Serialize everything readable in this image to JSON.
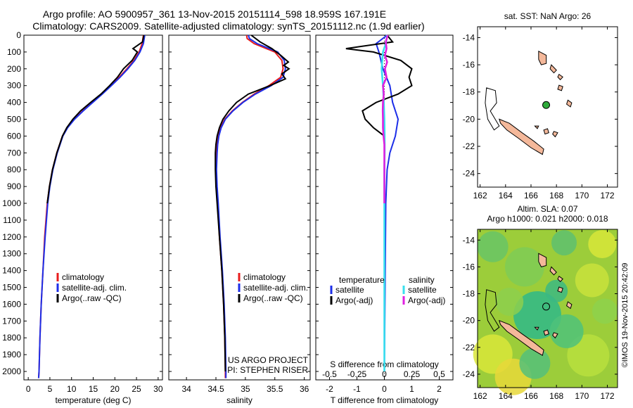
{
  "header": {
    "line1": "Argo profile: AO 5900957_361 13-Nov-2015 20151114_598 18.959S 167.191E",
    "line2": "Climatology: CARS2009. Satellite-adjusted climatology: synTS_20151112.nc (1.9d earlier)"
  },
  "colors": {
    "climatology": "#e81c1c",
    "satellite": "#1c2ee8",
    "argo": "#000000",
    "sal_satellite": "#38e0ee",
    "sal_argo": "#e020e0",
    "land": "#f4b89a"
  },
  "chart_data": [
    {
      "type": "line",
      "panel": "temperature",
      "xlabel": "temperature (deg C)",
      "ylabel": "",
      "xlim": [
        -1,
        31
      ],
      "ylim": [
        2050,
        0
      ],
      "x_ticks": [
        "0",
        "5",
        "10",
        "15",
        "20",
        "25",
        "30"
      ],
      "y_ticks": [
        "0",
        "100",
        "200",
        "300",
        "400",
        "500",
        "600",
        "700",
        "800",
        "900",
        "1000",
        "1100",
        "1200",
        "1300",
        "1400",
        "1500",
        "1600",
        "1700",
        "1800",
        "1900",
        "2000"
      ],
      "series": [
        {
          "name": "climatology",
          "depth": [
            0,
            50,
            100,
            150,
            200,
            250,
            300,
            350,
            400,
            450,
            500,
            550,
            600,
            700,
            800,
            900,
            1000,
            1200,
            1400,
            1600,
            1800,
            2000,
            2040
          ],
          "values": [
            26.6,
            26.3,
            25.6,
            24.4,
            22.8,
            21.0,
            19.0,
            17.0,
            14.8,
            12.6,
            10.6,
            9.0,
            7.9,
            6.6,
            5.6,
            4.9,
            4.4,
            3.8,
            3.4,
            3.0,
            2.7,
            2.5,
            2.4
          ]
        },
        {
          "name": "satellite-adj. clim.",
          "depth": [
            0,
            50,
            100,
            150,
            200,
            250,
            300,
            350,
            400,
            450,
            500,
            550,
            600,
            700,
            800,
            900,
            1000,
            1200,
            1400,
            1600,
            1800,
            2000,
            2040
          ],
          "values": [
            26.9,
            26.6,
            25.8,
            24.6,
            23.0,
            21.2,
            19.2,
            17.1,
            14.9,
            12.7,
            10.7,
            9.1,
            8.0,
            6.7,
            5.7,
            5.0,
            4.5,
            3.9,
            3.4,
            3.0,
            2.7,
            2.5,
            2.4
          ]
        },
        {
          "name": "Argo(..raw -QC)",
          "depth": [
            0,
            40,
            80,
            100,
            150,
            200,
            250,
            300,
            350,
            400,
            450,
            500,
            550,
            600,
            700,
            800,
            900,
            1000
          ],
          "values": [
            26.7,
            26.4,
            24.2,
            25.2,
            24.0,
            22.0,
            20.6,
            18.8,
            16.8,
            14.4,
            12.1,
            10.3,
            8.9,
            7.9,
            6.6,
            5.6,
            4.9,
            4.4
          ]
        }
      ],
      "legend": [
        "climatology",
        "satellite-adj. clim.",
        "Argo(..raw -QC)"
      ]
    },
    {
      "type": "line",
      "panel": "salinity",
      "xlabel": "salinity",
      "xlim": [
        33.7,
        36.1
      ],
      "ylim": [
        2050,
        0
      ],
      "x_ticks": [
        "34",
        "34.5",
        "35",
        "35.5",
        "36"
      ],
      "series": [
        {
          "name": "climatology",
          "depth": [
            0,
            20,
            50,
            100,
            150,
            200,
            250,
            300,
            350,
            400,
            450,
            500,
            550,
            600,
            650,
            700,
            800,
            900,
            1000,
            1200,
            1400,
            1600,
            1800,
            2000,
            2040
          ],
          "values": [
            35.02,
            35.03,
            35.15,
            35.5,
            35.62,
            35.64,
            35.6,
            35.4,
            35.15,
            34.95,
            34.78,
            34.65,
            34.58,
            34.54,
            34.52,
            34.51,
            34.5,
            34.51,
            34.53,
            34.56,
            34.6,
            34.63,
            34.65,
            34.66,
            34.66
          ]
        },
        {
          "name": "satellite-adj. clim.",
          "depth": [
            0,
            20,
            50,
            100,
            150,
            200,
            250,
            300,
            350,
            400,
            450,
            500,
            550,
            600,
            650,
            700,
            800,
            900,
            1000,
            1200,
            1400,
            1600,
            1800,
            2000,
            2040
          ],
          "values": [
            35.05,
            35.07,
            35.2,
            35.55,
            35.66,
            35.68,
            35.64,
            35.44,
            35.17,
            34.96,
            34.79,
            34.66,
            34.59,
            34.55,
            34.53,
            34.52,
            34.51,
            34.52,
            34.54,
            34.57,
            34.61,
            34.64,
            34.66,
            34.67,
            34.67
          ]
        },
        {
          "name": "Argo(..raw -QC)",
          "depth": [
            0,
            40,
            80,
            120,
            160,
            180,
            200,
            230,
            260,
            300,
            350,
            400,
            450,
            500,
            550,
            600,
            650,
            700,
            800,
            900,
            1000,
            1200,
            1400,
            1600,
            1800,
            2000
          ],
          "values": [
            35.1,
            35.25,
            35.45,
            35.6,
            35.73,
            35.65,
            35.74,
            35.62,
            35.68,
            35.42,
            35.05,
            34.85,
            34.72,
            34.62,
            34.56,
            34.52,
            34.5,
            34.49,
            34.49,
            34.5,
            34.52,
            34.56,
            34.6,
            34.63,
            34.65,
            34.66
          ]
        }
      ],
      "legend": [
        "climatology",
        "satellite-adj. clim.",
        "Argo(..raw -QC)"
      ],
      "annotations": [
        "US ARGO PROJECT",
        "PI: STEPHEN RISER"
      ]
    },
    {
      "type": "line",
      "panel": "difference",
      "xlabel_top": "S difference from climatology",
      "xlabel": "T difference from climatology",
      "xlim": [
        -2.5,
        2.5
      ],
      "ylim": [
        2050,
        0
      ],
      "x_ticks_bottom": [
        "-2",
        "-1",
        "0",
        "1",
        "2"
      ],
      "x_ticks_top": [
        "-0.5",
        "-0.25",
        "0",
        "0.25",
        "0.5"
      ],
      "series": [
        {
          "name": "temperature satellite",
          "depth": [
            0,
            50,
            100,
            200,
            300,
            400,
            500,
            600,
            700,
            800,
            1000,
            2000
          ],
          "values": [
            0.1,
            -0.3,
            -0.2,
            -0.05,
            0.2,
            0.3,
            0.5,
            0.4,
            0.2,
            0.1,
            0.05,
            0.0
          ]
        },
        {
          "name": "temperature Argo(-adj)",
          "depth": [
            0,
            40,
            80,
            100,
            150,
            200,
            250,
            300,
            350,
            400,
            450,
            500,
            550,
            600,
            700,
            800,
            900,
            1000
          ],
          "values": [
            0.1,
            0.3,
            -1.4,
            -0.4,
            0.6,
            1.0,
            0.9,
            1.0,
            0.5,
            -0.3,
            -0.8,
            -0.7,
            -0.4,
            0.0,
            0.0,
            0.0,
            0.0,
            0.0
          ]
        },
        {
          "name": "salinity satellite",
          "depth": [
            0,
            50,
            100,
            200,
            300,
            400,
            500,
            600,
            700,
            800,
            900,
            1000,
            1500,
            2000
          ],
          "values": [
            0.1,
            0.05,
            -0.05,
            -0.1,
            -0.05,
            -0.02,
            0.0,
            0.01,
            0.01,
            0.0,
            0.0,
            0.0,
            0.0,
            0.0
          ]
        },
        {
          "name": "salinity Argo(-adj)",
          "depth": [
            0,
            40,
            80,
            120,
            160,
            200,
            250,
            300,
            350,
            400,
            450,
            500,
            550,
            600,
            650,
            700,
            800,
            900,
            1000
          ],
          "values": [
            0.12,
            0.05,
            0.08,
            0.02,
            0.1,
            0.02,
            0.08,
            -0.05,
            -0.02,
            -0.05,
            -0.06,
            -0.05,
            -0.05,
            -0.03,
            0.0,
            0.0,
            0.0,
            0.0,
            0.0
          ]
        }
      ],
      "legend_headers": [
        "temperature",
        "salinity"
      ],
      "legend": [
        "satellite",
        "Argo(-adj)",
        "satellite",
        "Argo(-adj)"
      ]
    },
    {
      "type": "map",
      "panel": "sst",
      "title": "sat. SST: NaN Argo: 26",
      "xlim": [
        161.8,
        172.8
      ],
      "ylim": [
        -25,
        -13.2
      ],
      "x_ticks": [
        "162",
        "164",
        "166",
        "168",
        "170",
        "172"
      ],
      "y_ticks": [
        "-14",
        "-16",
        "-18",
        "-20",
        "-22",
        "-24"
      ],
      "float_position": [
        167.191,
        -18.959
      ]
    },
    {
      "type": "map",
      "panel": "sla",
      "title": "Altim. SLA: 0.07",
      "subtitle": "Argo h1000: 0.021 h2000: 0.018",
      "xlim": [
        161.8,
        172.8
      ],
      "ylim": [
        -25,
        -13.2
      ],
      "x_ticks": [
        "162",
        "164",
        "166",
        "168",
        "170",
        "172"
      ],
      "y_ticks": [
        "-14",
        "-16",
        "-18",
        "-20",
        "-22",
        "-24"
      ],
      "float_position": [
        167.191,
        -18.959
      ]
    }
  ],
  "footer": {
    "credit": "©IMOS 19-Nov-2015 20:42:09"
  }
}
